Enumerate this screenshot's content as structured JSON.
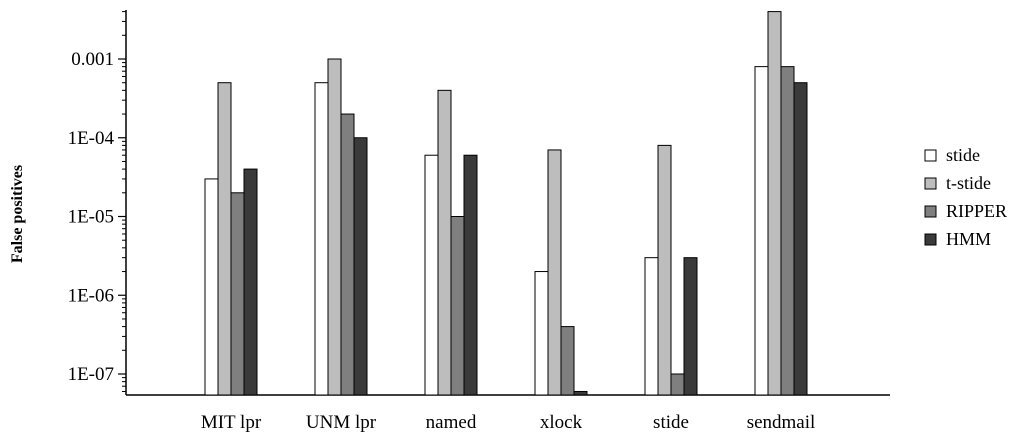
{
  "chart_data": {
    "type": "bar",
    "scale": "log",
    "ylabel": "False positives",
    "xlabel": "",
    "categories": [
      "MIT lpr",
      "UNM lpr",
      "named",
      "xlock",
      "stide",
      "sendmail"
    ],
    "y_ticks": [
      {
        "value": 1e-07,
        "label": "1E-07"
      },
      {
        "value": 1e-06,
        "label": "1E-06"
      },
      {
        "value": 1e-05,
        "label": "1E-05"
      },
      {
        "value": 0.0001,
        "label": "1E-04"
      },
      {
        "value": 0.001,
        "label": "0.001"
      }
    ],
    "ylim": [
      5e-08,
      0.004
    ],
    "grid": false,
    "legend_position": "right",
    "series": [
      {
        "name": "stide",
        "color": "#ffffff",
        "values": [
          3e-05,
          0.0005,
          6e-05,
          2e-06,
          3e-06,
          0.0008
        ]
      },
      {
        "name": "t-stide",
        "color": "#bdbdbd",
        "values": [
          0.0005,
          0.001,
          0.0004,
          7e-05,
          8e-05,
          0.004
        ]
      },
      {
        "name": "RIPPER",
        "color": "#7f7f7f",
        "values": [
          2e-05,
          0.0002,
          1e-05,
          4e-07,
          1e-07,
          0.0008
        ]
      },
      {
        "name": "HMM",
        "color": "#3a3a3a",
        "values": [
          4e-05,
          0.0001,
          6e-05,
          6e-08,
          3e-06,
          0.0005
        ]
      }
    ]
  }
}
